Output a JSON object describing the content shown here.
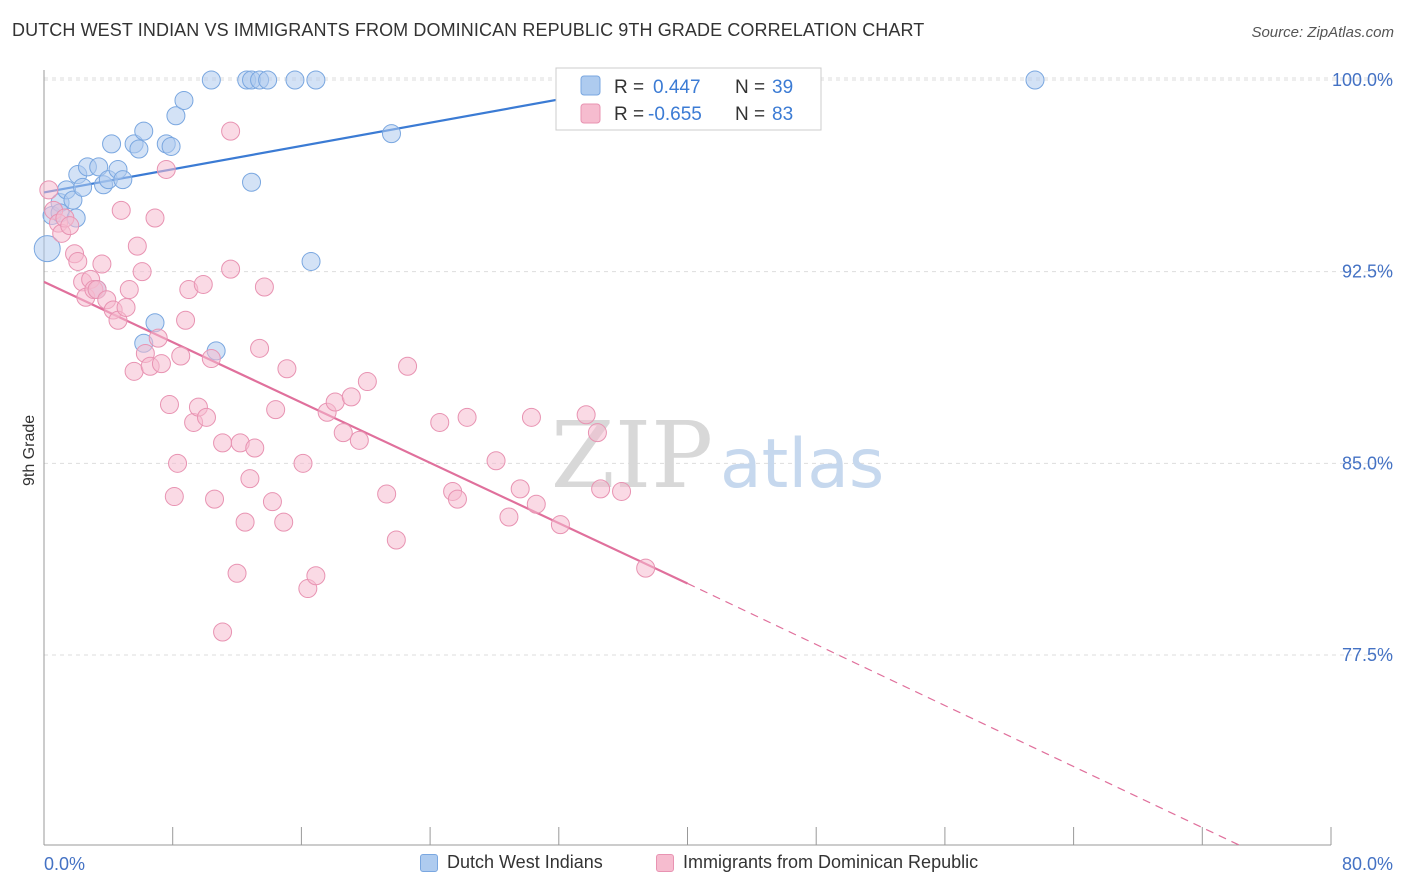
{
  "header": {
    "title": "DUTCH WEST INDIAN VS IMMIGRANTS FROM DOMINICAN REPUBLIC 9TH GRADE CORRELATION CHART",
    "source": "Source: ZipAtlas.com"
  },
  "watermark": {
    "zip": "ZIP",
    "atlas": "atlas"
  },
  "colors": {
    "blue": "#3b7bd4",
    "blue_fill": "#aecbef",
    "pink": "#e0709c",
    "pink_fill": "#f6bccf",
    "axis_text": "#4472c4",
    "grid": "#dddddd"
  },
  "stats_legend": {
    "rows": [
      {
        "r_label": "R =",
        "r_value": "0.447",
        "n_label": "N =",
        "n_value": "39",
        "series": "blue"
      },
      {
        "r_label": "R =",
        "r_value": "-0.655",
        "n_label": "N =",
        "n_value": "83",
        "series": "pink"
      }
    ]
  },
  "chart_data": {
    "type": "scatter",
    "xlabel": "",
    "ylabel": "9th Grade",
    "xlim": [
      0,
      80
    ],
    "ylim": [
      70,
      100.6
    ],
    "x_tick_labels": [
      "0.0%",
      "80.0%"
    ],
    "y_ticks": [
      77.5,
      85.0,
      92.5,
      100.0
    ],
    "y_tick_labels": [
      "77.5%",
      "85.0%",
      "92.5%",
      "100.0%"
    ],
    "grid": true,
    "legend_position": "bottom",
    "series": [
      {
        "name": "Dutch West Indians",
        "color": "blue",
        "r": 0.447,
        "n": 39,
        "trend": {
          "x": [
            0,
            38.7
          ],
          "y": [
            95.6,
            100.0
          ]
        },
        "points": [
          [
            0.2,
            93.4
          ],
          [
            0.5,
            94.7
          ],
          [
            1.0,
            95.2
          ],
          [
            1.4,
            95.7
          ],
          [
            1.8,
            95.3
          ],
          [
            2.1,
            96.3
          ],
          [
            2.4,
            95.8
          ],
          [
            2.7,
            96.6
          ],
          [
            3.4,
            96.6
          ],
          [
            3.7,
            95.9
          ],
          [
            4.0,
            96.1
          ],
          [
            4.2,
            97.5
          ],
          [
            4.6,
            96.5
          ],
          [
            4.9,
            96.1
          ],
          [
            5.6,
            97.5
          ],
          [
            5.9,
            97.3
          ],
          [
            6.2,
            98.0
          ],
          [
            7.6,
            97.5
          ],
          [
            7.9,
            97.4
          ],
          [
            8.2,
            98.6
          ],
          [
            8.7,
            99.2
          ],
          [
            10.4,
            100.0
          ],
          [
            12.6,
            100.0
          ],
          [
            12.9,
            100.0
          ],
          [
            13.4,
            100.0
          ],
          [
            13.9,
            100.0
          ],
          [
            15.6,
            100.0
          ],
          [
            16.9,
            100.0
          ],
          [
            12.9,
            96.0
          ],
          [
            16.6,
            92.9
          ],
          [
            21.6,
            97.9
          ],
          [
            34.9,
            100.0
          ],
          [
            61.6,
            100.0
          ],
          [
            3.3,
            91.8
          ],
          [
            6.9,
            90.5
          ],
          [
            6.2,
            89.7
          ],
          [
            10.7,
            89.4
          ],
          [
            1.0,
            94.8
          ],
          [
            2.0,
            94.6
          ]
        ]
      },
      {
        "name": "Immigrants from Dominican Republic",
        "color": "pink",
        "r": -0.655,
        "n": 83,
        "trend": {
          "x": [
            0,
            40
          ],
          "y": [
            92.1,
            80.3
          ]
        },
        "trend_extension": {
          "x": [
            40,
            74.5
          ],
          "y": [
            80.3,
            70.0
          ]
        },
        "points": [
          [
            0.3,
            95.7
          ],
          [
            0.6,
            94.9
          ],
          [
            0.9,
            94.4
          ],
          [
            1.1,
            94.0
          ],
          [
            1.3,
            94.6
          ],
          [
            1.6,
            94.3
          ],
          [
            1.9,
            93.2
          ],
          [
            2.1,
            92.9
          ],
          [
            2.4,
            92.1
          ],
          [
            2.6,
            91.5
          ],
          [
            2.9,
            92.2
          ],
          [
            3.1,
            91.8
          ],
          [
            3.3,
            91.8
          ],
          [
            3.6,
            92.8
          ],
          [
            3.9,
            91.4
          ],
          [
            4.3,
            91.0
          ],
          [
            4.6,
            90.6
          ],
          [
            4.8,
            94.9
          ],
          [
            5.1,
            91.1
          ],
          [
            5.3,
            91.8
          ],
          [
            5.6,
            88.6
          ],
          [
            5.8,
            93.5
          ],
          [
            6.1,
            92.5
          ],
          [
            6.3,
            89.3
          ],
          [
            6.6,
            88.8
          ],
          [
            6.9,
            94.6
          ],
          [
            7.1,
            89.9
          ],
          [
            7.3,
            88.9
          ],
          [
            7.6,
            96.5
          ],
          [
            7.8,
            87.3
          ],
          [
            8.1,
            83.7
          ],
          [
            8.3,
            85.0
          ],
          [
            8.5,
            89.2
          ],
          [
            8.8,
            90.6
          ],
          [
            9.0,
            91.8
          ],
          [
            9.3,
            86.6
          ],
          [
            9.6,
            87.2
          ],
          [
            9.9,
            92.0
          ],
          [
            10.1,
            86.8
          ],
          [
            10.4,
            89.1
          ],
          [
            10.6,
            83.6
          ],
          [
            11.1,
            85.8
          ],
          [
            11.1,
            78.4
          ],
          [
            11.6,
            92.6
          ],
          [
            11.6,
            98.0
          ],
          [
            12.0,
            80.7
          ],
          [
            12.2,
            85.8
          ],
          [
            12.5,
            82.7
          ],
          [
            12.8,
            84.4
          ],
          [
            13.1,
            85.6
          ],
          [
            13.4,
            89.5
          ],
          [
            13.7,
            91.9
          ],
          [
            14.2,
            83.5
          ],
          [
            14.4,
            87.1
          ],
          [
            14.9,
            82.7
          ],
          [
            15.1,
            88.7
          ],
          [
            16.1,
            85.0
          ],
          [
            16.4,
            80.1
          ],
          [
            16.9,
            80.6
          ],
          [
            17.6,
            87.0
          ],
          [
            18.1,
            87.4
          ],
          [
            18.6,
            86.2
          ],
          [
            19.1,
            87.6
          ],
          [
            19.6,
            85.9
          ],
          [
            20.1,
            88.2
          ],
          [
            21.3,
            83.8
          ],
          [
            21.9,
            82.0
          ],
          [
            22.6,
            88.8
          ],
          [
            24.6,
            86.6
          ],
          [
            25.4,
            83.9
          ],
          [
            25.7,
            83.6
          ],
          [
            26.3,
            86.8
          ],
          [
            28.1,
            85.1
          ],
          [
            28.9,
            82.9
          ],
          [
            29.6,
            84.0
          ],
          [
            30.3,
            86.8
          ],
          [
            30.6,
            83.4
          ],
          [
            32.1,
            82.6
          ],
          [
            33.7,
            86.9
          ],
          [
            34.4,
            86.2
          ],
          [
            34.6,
            84.0
          ],
          [
            35.9,
            83.9
          ],
          [
            37.4,
            80.9
          ]
        ]
      }
    ]
  },
  "bottom_legend": {
    "items": [
      {
        "label": "Dutch West Indians",
        "color": "blue"
      },
      {
        "label": "Immigrants from Dominican Republic",
        "color": "pink"
      }
    ]
  }
}
